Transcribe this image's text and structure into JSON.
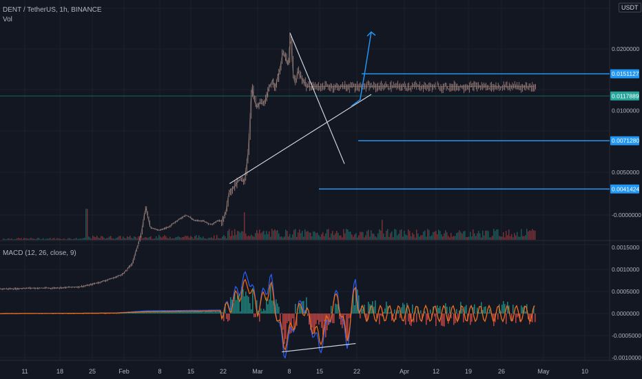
{
  "header": {
    "symbol_line": "DENT / TetherUS, 1h, BINANCE",
    "volume_label": "Vol",
    "currency_badge": "USDT"
  },
  "macd": {
    "label": "MACD (12, 26, close, 9)"
  },
  "colors": {
    "background": "#131722",
    "grid": "#1e222d",
    "candles": "#c19a8f",
    "blue_level": "#2196f3",
    "green_tag": "#26a69a",
    "macd_line": "#2962ff",
    "signal_line": "#ff6d00",
    "hist_up": "#26a69a",
    "hist_down": "#ef5350",
    "trendline": "#d1d4dc"
  },
  "chart_data": [
    {
      "type": "candlestick",
      "title": "DENT / TetherUS, 1h, BINANCE",
      "x_ticks": [
        "11",
        "18",
        "25",
        "Feb",
        "8",
        "15",
        "22",
        "Mar",
        "8",
        "15",
        "22",
        "Apr",
        "12",
        "19",
        "26",
        "May",
        "10"
      ],
      "x_range_days": [
        -3,
        63
      ],
      "y_ticks": [
        "0.0200000",
        "0.0100000",
        "0.0050000",
        "-0.0000000"
      ],
      "y_scale": "log",
      "levels": [
        {
          "label": "0.0151127",
          "value": 0.0151127,
          "color": "#2196f3"
        },
        {
          "label": "0.0117889",
          "value": 0.0117889,
          "color": "#26a69a",
          "current_price": true
        },
        {
          "label": "0.0071280",
          "value": 0.007128,
          "color": "#2196f3"
        },
        {
          "label": "0.0041424",
          "value": 0.0041424,
          "color": "#2196f3"
        }
      ],
      "price_path": [
        [
          -3,
          0.00135
        ],
        [
          -2,
          0.00135
        ],
        [
          0,
          0.00136
        ],
        [
          3,
          0.00136
        ],
        [
          6,
          0.00136
        ],
        [
          9,
          0.00137
        ],
        [
          12,
          0.00138
        ],
        [
          14,
          0.0014
        ],
        [
          17,
          0.00146
        ],
        [
          20,
          0.00153
        ],
        [
          22,
          0.0016
        ],
        [
          24,
          0.0018
        ],
        [
          26,
          0.0025
        ],
        [
          27,
          0.0034
        ],
        [
          28,
          0.0027
        ],
        [
          30,
          0.0026
        ],
        [
          32,
          0.0027
        ],
        [
          34,
          0.0029
        ],
        [
          36,
          0.0031
        ],
        [
          38,
          0.0029
        ],
        [
          40,
          0.0029
        ],
        [
          41,
          0.0028
        ],
        [
          42,
          0.0028
        ],
        [
          43,
          0.0029
        ],
        [
          44,
          0.0029
        ],
        [
          45,
          0.0032
        ],
        [
          45.5,
          0.0039
        ],
        [
          46,
          0.0041
        ],
        [
          46.5,
          0.0042
        ],
        [
          47,
          0.0043
        ],
        [
          48,
          0.0046
        ],
        [
          49,
          0.0045
        ],
        [
          49.5,
          0.0052
        ],
        [
          50,
          0.0065
        ],
        [
          50.3,
          0.0085
        ],
        [
          50.5,
          0.0108
        ],
        [
          50.8,
          0.0133
        ],
        [
          51.2,
          0.0115
        ],
        [
          51.6,
          0.0107
        ],
        [
          52,
          0.0103
        ],
        [
          52.5,
          0.011
        ],
        [
          53,
          0.0108
        ],
        [
          53.5,
          0.011
        ],
        [
          54,
          0.0113
        ],
        [
          54.5,
          0.0127
        ],
        [
          55,
          0.0135
        ],
        [
          55.5,
          0.0142
        ],
        [
          56,
          0.0128
        ],
        [
          56.5,
          0.0146
        ],
        [
          57,
          0.0157
        ],
        [
          57.5,
          0.0185
        ],
        [
          58,
          0.0196
        ],
        [
          58.5,
          0.0172
        ],
        [
          59,
          0.0165
        ],
        [
          59.3,
          0.0238
        ],
        [
          59.6,
          0.0205
        ],
        [
          60,
          0.0148
        ],
        [
          60.5,
          0.0135
        ],
        [
          61,
          0.0156
        ],
        [
          61.5,
          0.0148
        ],
        [
          62,
          0.0142
        ],
        [
          62.5,
          0.0139
        ],
        [
          63,
          0.0131
        ]
      ],
      "trendlines": [
        {
          "name": "descending resistance",
          "from": [
            59.3,
            0.024
          ],
          "to": [
            71.5,
            0.0055
          ],
          "color": "#d1d4dc"
        },
        {
          "name": "ascending support",
          "from": [
            45.8,
            0.0044
          ],
          "to": [
            77.5,
            0.012
          ],
          "color": "#d1d4dc"
        }
      ],
      "projection": {
        "color": "#2196f3",
        "direction": "up",
        "points": [
          [
            73,
            0.0105
          ],
          [
            75,
            0.0113
          ],
          [
            76,
            0.0151
          ],
          [
            77.5,
            0.0242
          ]
        ]
      },
      "volume_label": "Vol"
    },
    {
      "type": "line",
      "title": "MACD (12, 26, close, 9)",
      "y_ticks": [
        "0.0015000",
        "0.0010000",
        "0.0005000",
        "0.0000000",
        "-0.0005000",
        "-0.0010000"
      ],
      "ylim": [
        -0.0011,
        0.0015
      ],
      "series": [
        {
          "name": "MACD",
          "color": "#2962ff",
          "values": [
            [
              -3,
              0
            ],
            [
              20,
              1e-05
            ],
            [
              27,
              6e-05
            ],
            [
              45,
              8e-05
            ],
            [
              50,
              0.0009
            ],
            [
              52,
              0.0001
            ],
            [
              55,
              0.0008
            ],
            [
              58,
              -0.0009
            ],
            [
              62,
              0.0003
            ],
            [
              66,
              -0.0008
            ],
            [
              70,
              0.0005
            ],
            [
              72,
              -0.0008
            ],
            [
              74,
              0.0008
            ],
            [
              75,
              0
            ]
          ]
        },
        {
          "name": "Signal",
          "color": "#ff6d00",
          "values": [
            [
              -3,
              0
            ],
            [
              20,
              1e-05
            ],
            [
              27,
              4e-05
            ],
            [
              45,
              6e-05
            ],
            [
              50,
              0.0007
            ],
            [
              52,
              0.0001
            ],
            [
              55,
              0.0006
            ],
            [
              58,
              -0.0007
            ],
            [
              62,
              0.0002
            ],
            [
              66,
              -0.0006
            ],
            [
              70,
              0.0004
            ],
            [
              72,
              -0.0006
            ],
            [
              74,
              0.0006
            ],
            [
              75,
              0
            ]
          ]
        }
      ],
      "divergence_line": {
        "from": [
          57.5,
          -0.00087
        ],
        "to": [
          74,
          -0.00068
        ],
        "color": "#d1d4dc"
      }
    }
  ]
}
